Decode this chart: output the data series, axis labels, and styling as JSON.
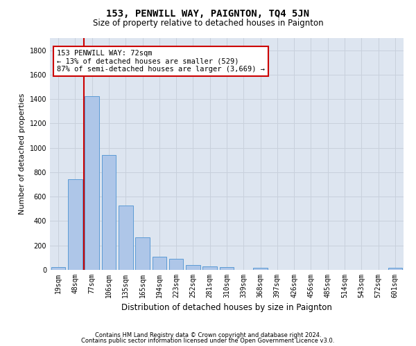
{
  "title": "153, PENWILL WAY, PAIGNTON, TQ4 5JN",
  "subtitle": "Size of property relative to detached houses in Paignton",
  "xlabel": "Distribution of detached houses by size in Paignton",
  "ylabel": "Number of detached properties",
  "categories": [
    "19sqm",
    "48sqm",
    "77sqm",
    "106sqm",
    "135sqm",
    "165sqm",
    "194sqm",
    "223sqm",
    "252sqm",
    "281sqm",
    "310sqm",
    "339sqm",
    "368sqm",
    "397sqm",
    "426sqm",
    "456sqm",
    "485sqm",
    "514sqm",
    "543sqm",
    "572sqm",
    "601sqm"
  ],
  "values": [
    22,
    745,
    1425,
    940,
    530,
    265,
    105,
    93,
    38,
    27,
    25,
    0,
    18,
    0,
    0,
    0,
    0,
    0,
    0,
    0,
    15
  ],
  "bar_color": "#aec6e8",
  "bar_edge_color": "#5b9bd5",
  "vline_color": "#cc0000",
  "vline_bar_index": 2,
  "annotation_text": "153 PENWILL WAY: 72sqm\n← 13% of detached houses are smaller (529)\n87% of semi-detached houses are larger (3,669) →",
  "annotation_box_color": "#cc0000",
  "ylim": [
    0,
    1900
  ],
  "yticks": [
    0,
    200,
    400,
    600,
    800,
    1000,
    1200,
    1400,
    1600,
    1800
  ],
  "grid_color": "#c8d0dc",
  "bg_color": "#dde5f0",
  "footer_line1": "Contains HM Land Registry data © Crown copyright and database right 2024.",
  "footer_line2": "Contains public sector information licensed under the Open Government Licence v3.0.",
  "title_fontsize": 10,
  "subtitle_fontsize": 8.5,
  "ylabel_fontsize": 8,
  "xlabel_fontsize": 8.5,
  "tick_fontsize": 7,
  "footer_fontsize": 6,
  "annot_fontsize": 7.5
}
